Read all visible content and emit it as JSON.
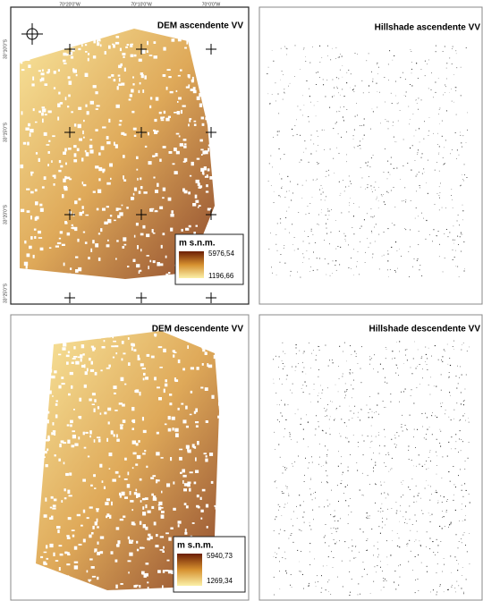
{
  "panels": [
    {
      "title": "DEM ascendente VV",
      "legend": {
        "title": "m s.n.m.",
        "max": "5976,54",
        "min": "1196,66"
      }
    },
    {
      "title": "Hillshade ascendente VV"
    },
    {
      "title": "DEM descendente VV",
      "legend": {
        "title": "m s.n.m.",
        "max": "5940,73",
        "min": "1269,34"
      }
    },
    {
      "title": "Hillshade descendente VV"
    }
  ],
  "coordinates": {
    "longitude": [
      "70°20'0\"W",
      "70°10'0\"W",
      "70°0'0\"W"
    ],
    "latitude": [
      "33°10'0\"S",
      "33°15'0\"S",
      "33°20'0\"S",
      "33°25'0\"S"
    ]
  }
}
